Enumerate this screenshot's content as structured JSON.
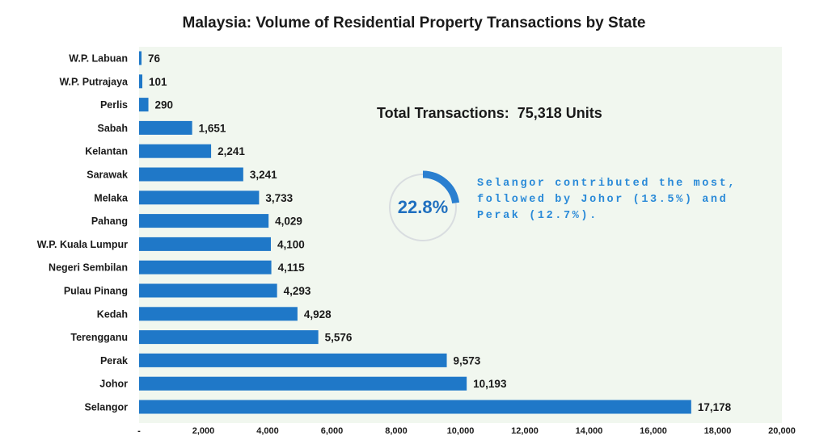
{
  "chart_data": {
    "type": "bar",
    "orientation": "horizontal",
    "title": "Malaysia: Volume of Residential Property Transactions by State",
    "categories": [
      "W.P. Labuan",
      "W.P. Putrajaya",
      "Perlis",
      "Sabah",
      "Kelantan",
      "Sarawak",
      "Melaka",
      "Pahang",
      "W.P. Kuala Lumpur",
      "Negeri Sembilan",
      "Pulau Pinang",
      "Kedah",
      "Terengganu",
      "Perak",
      "Johor",
      "Selangor"
    ],
    "values": [
      76,
      101,
      290,
      1651,
      2241,
      3241,
      3733,
      4029,
      4100,
      4115,
      4293,
      4928,
      5576,
      9573,
      10193,
      17178
    ],
    "value_labels": [
      "76",
      "101",
      "290",
      "1,651",
      "2,241",
      "3,241",
      "3,733",
      "4,029",
      "4,100",
      "4,115",
      "4,293",
      "4,928",
      "5,576",
      "9,573",
      "10,193",
      "17,178"
    ],
    "xlim": [
      0,
      20000
    ],
    "x_ticks": [
      0,
      2000,
      4000,
      6000,
      8000,
      10000,
      12000,
      14000,
      16000,
      18000,
      20000
    ],
    "x_tick_labels": [
      "-",
      "2,000",
      "4,000",
      "6,000",
      "8,000",
      "10,000",
      "12,000",
      "14,000",
      "16,000",
      "18,000",
      "20,000"
    ],
    "grid": false,
    "legend": "none",
    "bar_color": "#1f78c8",
    "plot_background": "#f1f7ef"
  },
  "annotations": {
    "total_label": "Total Transactions:  75,318 Units",
    "donut_percent_label": "22.8%",
    "donut_fraction": 0.228,
    "donut_color": "#2a7fd0",
    "donut_track_color": "#d9dde0",
    "note": "Selangor contributed the most, followed by Johor (13.5%) and Perak (12.7%)."
  }
}
